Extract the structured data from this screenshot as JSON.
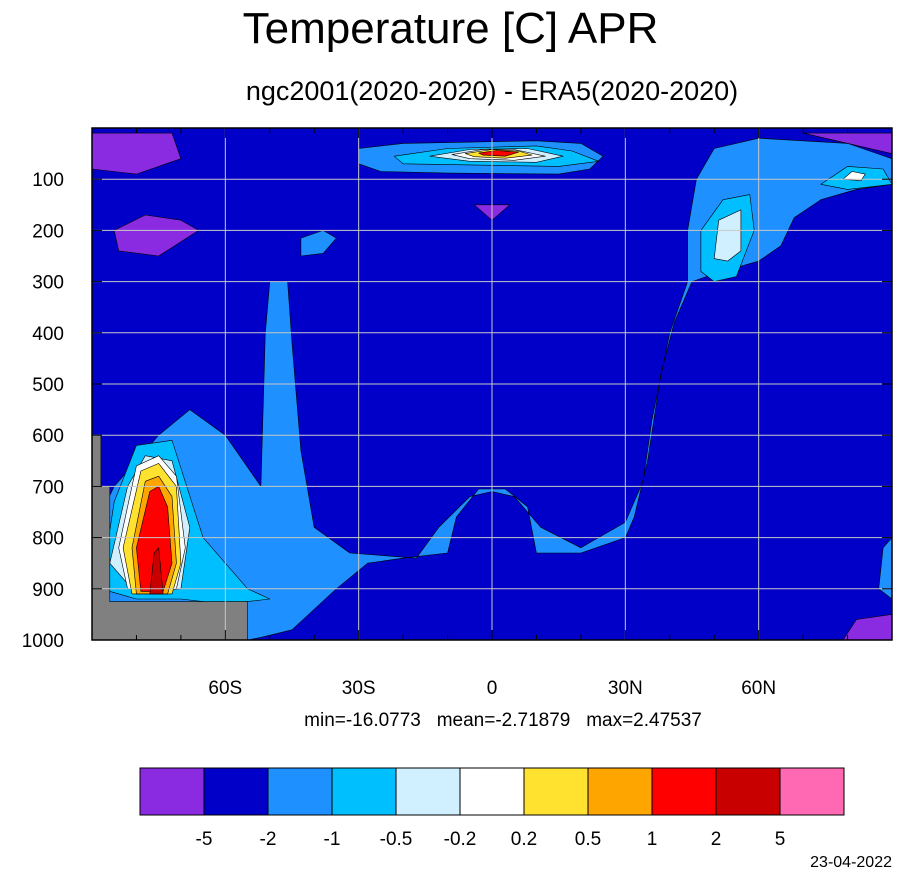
{
  "title": "Temperature [C] APR",
  "subtitle": "ngc2001(2020-2020) - ERA5(2020-2020)",
  "stats": {
    "min": "min=-16.0773",
    "mean": "mean=-2.71879",
    "max": "max=2.47537"
  },
  "date": "23-04-2022",
  "chart_data": {
    "type": "heatmap",
    "title": "Temperature [C] APR",
    "subtitle": "ngc2001(2020-2020) - ERA5(2020-2020)",
    "xlabel": "",
    "ylabel": "",
    "xlim": [
      -90,
      90
    ],
    "ylim": [
      1000,
      0
    ],
    "x_ticks": [
      {
        "value": -60,
        "label": "60S"
      },
      {
        "value": -30,
        "label": "30S"
      },
      {
        "value": 0,
        "label": "0"
      },
      {
        "value": 30,
        "label": "30N"
      },
      {
        "value": 60,
        "label": "60N"
      }
    ],
    "y_ticks": [
      {
        "value": 100,
        "label": "100"
      },
      {
        "value": 200,
        "label": "200"
      },
      {
        "value": 300,
        "label": "300"
      },
      {
        "value": 400,
        "label": "400"
      },
      {
        "value": 500,
        "label": "500"
      },
      {
        "value": 600,
        "label": "600"
      },
      {
        "value": 700,
        "label": "700"
      },
      {
        "value": 800,
        "label": "800"
      },
      {
        "value": 900,
        "label": "900"
      },
      {
        "value": 1000,
        "label": "1000"
      }
    ],
    "grid": true,
    "background_level_color": "#0000C8",
    "missing_color": "#808080",
    "levels": [
      "-5",
      "-2",
      "-1",
      "-0.5",
      "-0.2",
      "0.2",
      "0.5",
      "1",
      "2",
      "5"
    ],
    "colors": [
      "#8A2BE2",
      "#0000C8",
      "#1E90FF",
      "#00BFFF",
      "#D0F0FF",
      "#FFFFFF",
      "#FFE12F",
      "#FFA500",
      "#FF0000",
      "#C80000",
      "#FF69B4"
    ],
    "stats": {
      "min": -16.0773,
      "mean": -2.71879,
      "max": 2.47537
    },
    "regions": [
      {
        "name": "light-blue-main",
        "color": "#1E90FF",
        "points": [
          [
            -90,
            1000
          ],
          [
            -55,
            1000
          ],
          [
            -52,
            995
          ],
          [
            -45,
            980
          ],
          [
            -35,
            900
          ],
          [
            -28,
            850
          ],
          [
            -20,
            840
          ],
          [
            -10,
            830
          ],
          [
            -8,
            760
          ],
          [
            -3,
            705
          ],
          [
            3,
            705
          ],
          [
            8,
            740
          ],
          [
            10,
            830
          ],
          [
            20,
            830
          ],
          [
            30,
            800
          ],
          [
            32,
            760
          ],
          [
            35,
            650
          ],
          [
            38,
            480
          ],
          [
            41,
            380
          ],
          [
            45,
            300
          ],
          [
            50,
            285
          ],
          [
            60,
            260
          ],
          [
            65,
            230
          ],
          [
            68,
            175
          ],
          [
            74,
            140
          ],
          [
            82,
            120
          ],
          [
            90,
            110
          ],
          [
            90,
            60
          ],
          [
            80,
            30
          ],
          [
            60,
            20
          ],
          [
            50,
            40
          ],
          [
            46,
            100
          ],
          [
            44,
            200
          ],
          [
            44,
            300
          ],
          [
            40,
            400
          ],
          [
            36,
            570
          ],
          [
            34,
            690
          ],
          [
            30,
            770
          ],
          [
            20,
            820
          ],
          [
            11,
            780
          ],
          [
            5,
            720
          ],
          [
            0,
            710
          ],
          [
            -5,
            720
          ],
          [
            -12,
            780
          ],
          [
            -17,
            840
          ],
          [
            -32,
            830
          ],
          [
            -40,
            780
          ],
          [
            -43,
            630
          ],
          [
            -45,
            420
          ],
          [
            -46,
            300
          ],
          [
            -50,
            300
          ],
          [
            -51,
            400
          ],
          [
            -52,
            700
          ],
          [
            -60,
            600
          ],
          [
            -68,
            550
          ],
          [
            -75,
            600
          ],
          [
            -85,
            700
          ],
          [
            -90,
            790
          ]
        ]
      },
      {
        "name": "light-blue-strat-band",
        "color": "#1E90FF",
        "points": [
          [
            -30,
            40
          ],
          [
            -20,
            30
          ],
          [
            10,
            25
          ],
          [
            20,
            30
          ],
          [
            25,
            55
          ],
          [
            22,
            80
          ],
          [
            15,
            90
          ],
          [
            -10,
            88
          ],
          [
            -25,
            85
          ],
          [
            -30,
            70
          ]
        ]
      },
      {
        "name": "light-blue-30s-blob",
        "color": "#1E90FF",
        "points": [
          [
            -43,
            215
          ],
          [
            -38,
            200
          ],
          [
            -35,
            215
          ],
          [
            -38,
            245
          ],
          [
            -43,
            250
          ]
        ]
      },
      {
        "name": "cyan-60n-pillar",
        "color": "#00BFFF",
        "points": [
          [
            47,
            280
          ],
          [
            47,
            200
          ],
          [
            52,
            140
          ],
          [
            58,
            130
          ],
          [
            59,
            200
          ],
          [
            55,
            290
          ],
          [
            50,
            300
          ]
        ]
      },
      {
        "name": "pale-60n-core",
        "color": "#D0F0FF",
        "points": [
          [
            50,
            255
          ],
          [
            51,
            180
          ],
          [
            56,
            160
          ],
          [
            56,
            240
          ],
          [
            53,
            260
          ]
        ]
      },
      {
        "name": "cyan-strat-band",
        "color": "#00BFFF",
        "points": [
          [
            -22,
            55
          ],
          [
            -10,
            40
          ],
          [
            10,
            35
          ],
          [
            18,
            45
          ],
          [
            24,
            65
          ],
          [
            15,
            75
          ],
          [
            -5,
            72
          ],
          [
            -20,
            70
          ]
        ]
      },
      {
        "name": "pale-strat-band",
        "color": "#D0F0FF",
        "points": [
          [
            -14,
            55
          ],
          [
            -5,
            42
          ],
          [
            8,
            40
          ],
          [
            16,
            55
          ],
          [
            10,
            67
          ],
          [
            -5,
            65
          ]
        ]
      },
      {
        "name": "white-strat-band",
        "color": "#FFFFFF",
        "points": [
          [
            -9,
            52
          ],
          [
            -2,
            42
          ],
          [
            5,
            42
          ],
          [
            12,
            55
          ],
          [
            5,
            63
          ],
          [
            -5,
            60
          ]
        ]
      },
      {
        "name": "yellow-strat-core",
        "color": "#FFE12F",
        "points": [
          [
            -6,
            50
          ],
          [
            0,
            42
          ],
          [
            6,
            45
          ],
          [
            9,
            53
          ],
          [
            3,
            59
          ],
          [
            -4,
            56
          ]
        ]
      },
      {
        "name": "red-strat-core",
        "color": "#FF0000",
        "points": [
          [
            -3,
            49
          ],
          [
            1,
            44
          ],
          [
            6,
            47
          ],
          [
            3,
            55
          ],
          [
            -2,
            53
          ]
        ]
      },
      {
        "name": "cyan-nh-high",
        "color": "#00BFFF",
        "points": [
          [
            74,
            110
          ],
          [
            80,
            75
          ],
          [
            88,
            80
          ],
          [
            90,
            110
          ],
          [
            80,
            120
          ]
        ]
      },
      {
        "name": "white-nh-high",
        "color": "#FFFFFF",
        "points": [
          [
            79,
            100
          ],
          [
            81,
            85
          ],
          [
            84,
            90
          ],
          [
            83,
            103
          ]
        ]
      },
      {
        "name": "cyan-antarctic",
        "color": "#00BFFF",
        "points": [
          [
            -88,
            900
          ],
          [
            -85,
            730
          ],
          [
            -80,
            620
          ],
          [
            -72,
            610
          ],
          [
            -65,
            800
          ],
          [
            -55,
            900
          ],
          [
            -50,
            920
          ],
          [
            -60,
            930
          ],
          [
            -70,
            920
          ],
          [
            -80,
            920
          ]
        ]
      },
      {
        "name": "pale-antarctic",
        "color": "#D0F0FF",
        "points": [
          [
            -86,
            850
          ],
          [
            -82,
            700
          ],
          [
            -78,
            640
          ],
          [
            -72,
            650
          ],
          [
            -68,
            780
          ],
          [
            -70,
            900
          ],
          [
            -80,
            910
          ]
        ]
      },
      {
        "name": "white-antarctic",
        "color": "#FFFFFF",
        "points": [
          [
            -84,
            820
          ],
          [
            -80,
            660
          ],
          [
            -75,
            640
          ],
          [
            -71,
            680
          ],
          [
            -69,
            820
          ],
          [
            -71,
            900
          ],
          [
            -82,
            900
          ]
        ]
      },
      {
        "name": "yellow-antarctic",
        "color": "#FFE12F",
        "points": [
          [
            -83,
            820
          ],
          [
            -79,
            670
          ],
          [
            -75,
            655
          ],
          [
            -71,
            700
          ],
          [
            -70,
            850
          ],
          [
            -72,
            910
          ],
          [
            -81,
            910
          ]
        ]
      },
      {
        "name": "orange-antarctic",
        "color": "#FFA500",
        "points": [
          [
            -81,
            820
          ],
          [
            -78,
            690
          ],
          [
            -75,
            680
          ],
          [
            -72,
            720
          ],
          [
            -71,
            850
          ],
          [
            -73,
            910
          ],
          [
            -80,
            910
          ]
        ]
      },
      {
        "name": "red-antarctic",
        "color": "#FF0000",
        "points": [
          [
            -80,
            820
          ],
          [
            -77,
            710
          ],
          [
            -75,
            700
          ],
          [
            -73,
            740
          ],
          [
            -72,
            850
          ],
          [
            -74,
            905
          ],
          [
            -79,
            905
          ]
        ]
      },
      {
        "name": "dark-red-antarctic",
        "color": "#C80000",
        "points": [
          [
            -77,
            910
          ],
          [
            -76,
            830
          ],
          [
            -75,
            820
          ],
          [
            -74,
            910
          ]
        ]
      },
      {
        "name": "purple-sh-top",
        "color": "#8A2BE2",
        "points": [
          [
            -90,
            10
          ],
          [
            -72,
            10
          ],
          [
            -70,
            60
          ],
          [
            -80,
            90
          ],
          [
            -90,
            80
          ]
        ]
      },
      {
        "name": "purple-sh-200",
        "color": "#8A2BE2",
        "points": [
          [
            -85,
            200
          ],
          [
            -78,
            170
          ],
          [
            -70,
            180
          ],
          [
            -66,
            200
          ],
          [
            -75,
            250
          ],
          [
            -84,
            240
          ]
        ]
      },
      {
        "name": "purple-nh-top",
        "color": "#8A2BE2",
        "points": [
          [
            70,
            10
          ],
          [
            90,
            10
          ],
          [
            90,
            50
          ]
        ]
      },
      {
        "name": "purple-equator-dot",
        "color": "#8A2BE2",
        "points": [
          [
            -4,
            150
          ],
          [
            4,
            150
          ],
          [
            0,
            180
          ]
        ]
      },
      {
        "name": "purple-nh-surface",
        "color": "#8A2BE2",
        "points": [
          [
            79,
            1000
          ],
          [
            82,
            960
          ],
          [
            90,
            950
          ],
          [
            90,
            1000
          ]
        ]
      },
      {
        "name": "light-blue-nh-surface",
        "color": "#1E90FF",
        "points": [
          [
            87,
            900
          ],
          [
            88,
            820
          ],
          [
            90,
            800
          ],
          [
            90,
            920
          ]
        ]
      },
      {
        "name": "missing-terrain",
        "color": "#808080",
        "points": [
          [
            -90,
            600
          ],
          [
            -88,
            600
          ],
          [
            -88,
            700
          ],
          [
            -86,
            700
          ],
          [
            -86,
            925
          ],
          [
            -55,
            925
          ],
          [
            -55,
            1000
          ],
          [
            -90,
            1000
          ]
        ]
      }
    ]
  }
}
